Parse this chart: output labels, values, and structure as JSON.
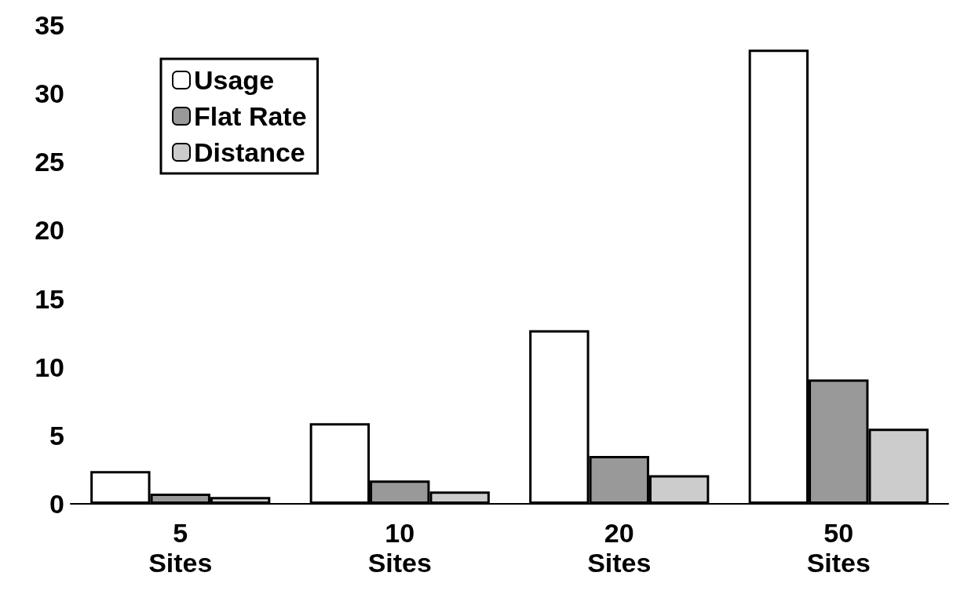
{
  "chart_data": {
    "type": "bar",
    "categories": [
      "5\nSites",
      "10\nSites",
      "20\nSites",
      "50\nSites"
    ],
    "series": [
      {
        "name": "Usage",
        "color": "#ffffff",
        "values": [
          2.4,
          5.9,
          12.7,
          33.2
        ]
      },
      {
        "name": "Flat Rate",
        "color": "#999999",
        "values": [
          0.75,
          1.7,
          3.5,
          9.1
        ]
      },
      {
        "name": "Distance",
        "color": "#cccccc",
        "values": [
          0.5,
          0.9,
          2.1,
          5.5
        ]
      }
    ],
    "ylim": [
      0,
      35
    ],
    "yticks": [
      0,
      5,
      10,
      15,
      20,
      25,
      30,
      35
    ],
    "grid": false,
    "legend": "top left"
  }
}
